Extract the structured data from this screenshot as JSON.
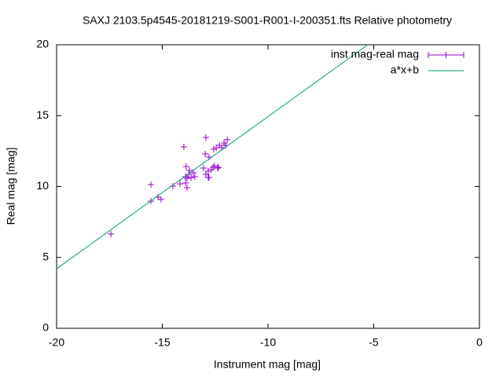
{
  "chart_data": {
    "type": "scatter",
    "title": "SAXJ 2103.5p4545-20181219-S001-R001-I-200351.fts Relative photometry",
    "x_label": "Instrument mag [mag]",
    "y_label": "Real mag [mag]",
    "xlim": [
      -20,
      0
    ],
    "ylim": [
      0,
      20
    ],
    "xticks": [
      -20,
      -15,
      -10,
      -5,
      0
    ],
    "yticks": [
      0,
      5,
      10,
      15,
      20
    ],
    "legend": "top right",
    "series": [
      {
        "name": "inst mag-real mag",
        "color": "#9400d3",
        "type": "scatter",
        "x": [
          -17.43,
          -15.54,
          -15.54,
          -15.2,
          -15.06,
          -14.5,
          -14.16,
          -13.98,
          -13.9,
          -13.87,
          -13.83,
          -13.83,
          -13.75,
          -13.72,
          -13.64,
          -13.53,
          -13.46,
          -13.9,
          -13.05,
          -12.97,
          -12.94,
          -12.94,
          -12.83,
          -12.83,
          -12.79,
          -12.68,
          -12.6,
          -12.57,
          -12.53,
          -12.45,
          -12.38,
          -12.3,
          -12.19,
          -12.08,
          -12.01,
          -11.93,
          -12.34,
          -12.79
        ],
        "values": [
          6.65,
          10.14,
          8.97,
          9.25,
          9.09,
          10.03,
          10.19,
          12.8,
          10.25,
          11.41,
          10.58,
          9.92,
          10.86,
          11.14,
          10.64,
          10.97,
          10.69,
          10.69,
          11.3,
          12.3,
          13.46,
          10.86,
          11.08,
          10.64,
          12.08,
          11.19,
          11.36,
          12.63,
          11.47,
          12.74,
          11.3,
          12.91,
          12.74,
          13.07,
          12.91,
          13.3,
          11.36,
          10.64
        ]
      },
      {
        "name": "a*x+b",
        "color": "#009e73",
        "type": "line",
        "x": [
          -20,
          -5.28
        ],
        "values": [
          4.2,
          20
        ]
      }
    ]
  }
}
